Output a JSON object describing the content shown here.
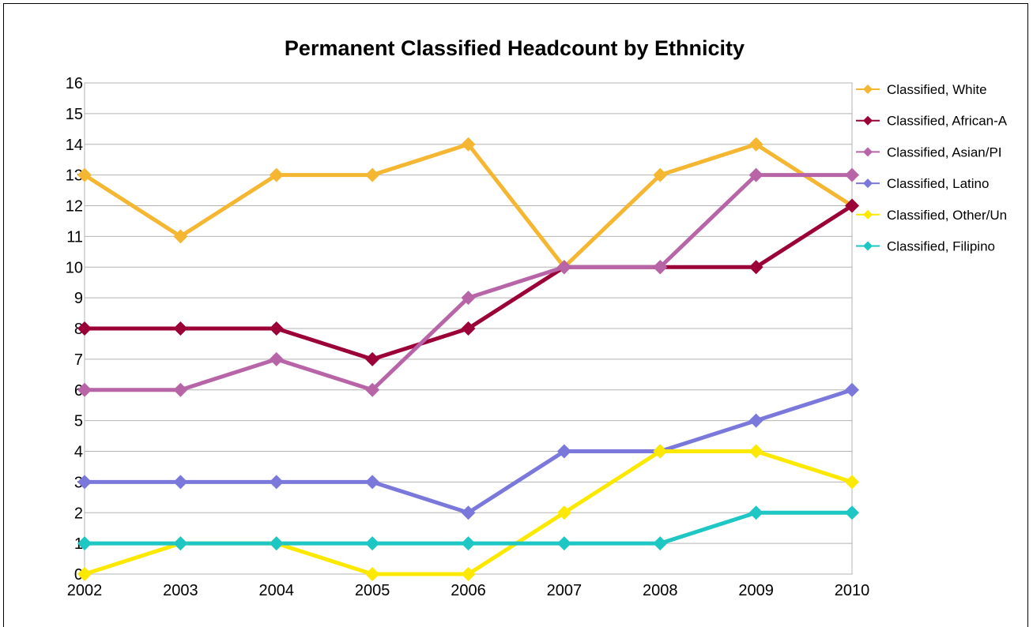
{
  "chart_data": {
    "type": "line",
    "title": "Permanent Classified Headcount by Ethnicity",
    "xlabel": "",
    "ylabel": "",
    "x": [
      "2002",
      "2003",
      "2004",
      "2005",
      "2006",
      "2007",
      "2008",
      "2009",
      "2010"
    ],
    "ylim": [
      0,
      16
    ],
    "yticks": [
      "0",
      "1",
      "2",
      "3",
      "4",
      "5",
      "6",
      "7",
      "8",
      "9",
      "10",
      "11",
      "12",
      "13",
      "14",
      "15",
      "16"
    ],
    "grid": true,
    "legend_position": "right",
    "series": [
      {
        "name": "Classified, White",
        "color": "#f5b631",
        "values": [
          13,
          11,
          13,
          13,
          14,
          10,
          13,
          14,
          12
        ]
      },
      {
        "name": "Classified, African-A",
        "color": "#9b0036",
        "values": [
          8,
          8,
          8,
          7,
          8,
          10,
          10,
          10,
          12
        ]
      },
      {
        "name": "Classified, Asian/PI",
        "color": "#b865a8",
        "values": [
          6,
          6,
          7,
          6,
          9,
          10,
          10,
          13,
          13
        ]
      },
      {
        "name": "Classified, Latino",
        "color": "#7b78dc",
        "values": [
          3,
          3,
          3,
          3,
          2,
          4,
          4,
          5,
          6
        ]
      },
      {
        "name": "Classified, Other/Un",
        "color": "#fde800",
        "values": [
          0,
          1,
          1,
          0,
          0,
          2,
          4,
          4,
          3
        ]
      },
      {
        "name": "Classified, Filipino",
        "color": "#1ec6c4",
        "values": [
          1,
          1,
          1,
          1,
          1,
          1,
          1,
          2,
          2
        ]
      }
    ]
  }
}
